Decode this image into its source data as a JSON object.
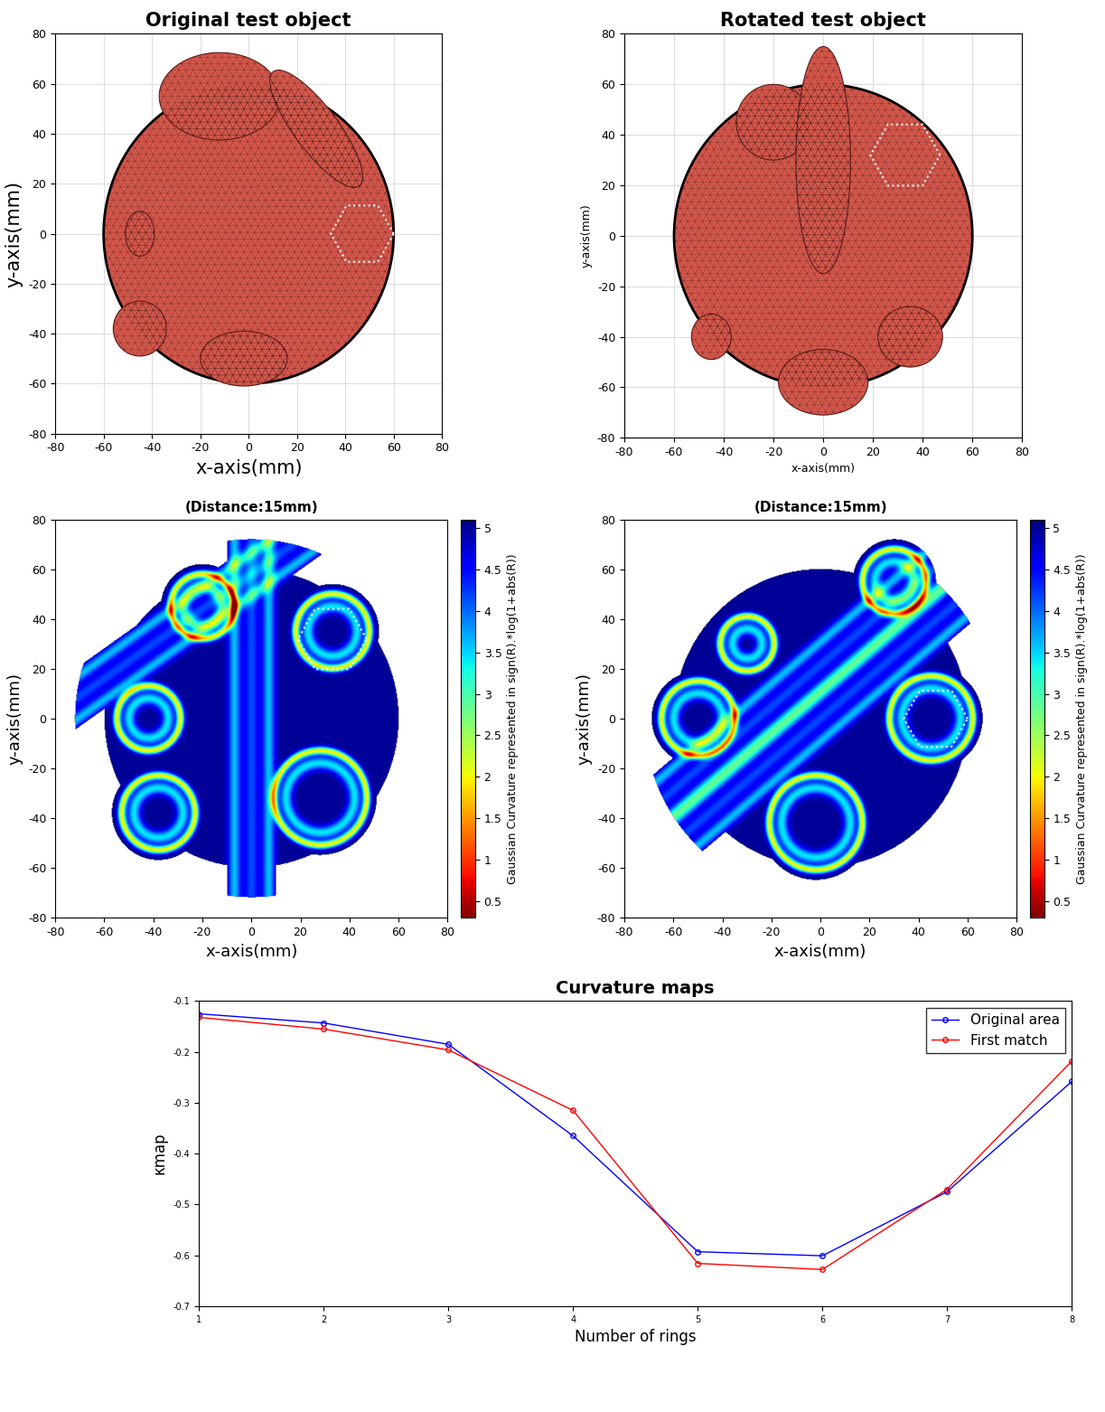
{
  "chart_data": [
    {
      "type": "mesh",
      "title": "Original test object",
      "x_label": "x-axis(mm)",
      "y_label": "y-axis(mm)",
      "xlim": [
        -80,
        80
      ],
      "ylim": [
        -80,
        80
      ],
      "xticks": [
        -80,
        -60,
        -40,
        -20,
        0,
        20,
        40,
        60,
        80
      ],
      "yticks": [
        -80,
        -60,
        -40,
        -20,
        0,
        20,
        40,
        60,
        80
      ],
      "grid": true
    },
    {
      "type": "mesh",
      "title": "Rotated test object",
      "x_label": "x-axis(mm)",
      "y_label": "y-axis(mm)",
      "xlim": [
        -80,
        80
      ],
      "ylim": [
        -80,
        80
      ],
      "xticks": [
        -80,
        -60,
        -40,
        -20,
        0,
        20,
        40,
        60,
        80
      ],
      "yticks": [
        -80,
        -60,
        -40,
        -20,
        0,
        20,
        40,
        60,
        80
      ],
      "grid": true
    },
    {
      "type": "heatmap",
      "title": "(Distance:15mm)",
      "x_label": "x-axis(mm)",
      "y_label": "y-axis(mm)",
      "xlim": [
        -80,
        80
      ],
      "ylim": [
        -80,
        80
      ],
      "xticks": [
        -80,
        -60,
        -40,
        -20,
        0,
        20,
        40,
        60,
        80
      ],
      "yticks": [
        -80,
        -60,
        -40,
        -20,
        0,
        20,
        40,
        60,
        80
      ],
      "colorbar_label": "Gaussian Curvature represented in sign(R).*log(1+abs(R))",
      "colorbar_range": [
        0.3,
        5.1
      ],
      "colorbar_ticks": [
        0.5,
        1,
        1.5,
        2,
        2.5,
        3,
        3.5,
        4,
        4.5,
        5
      ]
    },
    {
      "type": "heatmap",
      "title": "(Distance:15mm)",
      "x_label": "x-axis(mm)",
      "y_label": "y-axis(mm)",
      "xlim": [
        -80,
        80
      ],
      "ylim": [
        -80,
        80
      ],
      "xticks": [
        -80,
        -60,
        -40,
        -20,
        0,
        20,
        40,
        60,
        80
      ],
      "yticks": [
        -80,
        -60,
        -40,
        -20,
        0,
        20,
        40,
        60,
        80
      ],
      "colorbar_label": "Gaussian Curvature represented in sign(R).*log(1+abs(R))",
      "colorbar_range": [
        0.3,
        5.1
      ],
      "colorbar_ticks": [
        0.5,
        1,
        1.5,
        2,
        2.5,
        3,
        3.5,
        4,
        4.5,
        5
      ]
    },
    {
      "type": "line",
      "title": "Curvature maps",
      "x_label": "Number of rings",
      "y_label": "κmap",
      "x": [
        1,
        2,
        3,
        4,
        5,
        6,
        7,
        8
      ],
      "xlim": [
        1,
        8
      ],
      "xticks": [
        1,
        2,
        3,
        4,
        5,
        6,
        7,
        8
      ],
      "ylim": [
        -0.7,
        -0.1
      ],
      "yticks": [
        -0.7,
        -0.6,
        -0.5,
        -0.4,
        -0.3,
        -0.2,
        -0.1
      ],
      "legend": "upper right",
      "series": [
        {
          "name": "Original area",
          "color": "#0000ff",
          "marker": "o",
          "line_style": "solid",
          "values": [
            -0.125,
            -0.143,
            -0.185,
            -0.365,
            -0.593,
            -0.601,
            -0.475,
            -0.258
          ]
        },
        {
          "name": "First match",
          "color": "#ff0000",
          "marker": "o",
          "line_style": "solid",
          "values": [
            -0.132,
            -0.155,
            -0.196,
            -0.315,
            -0.616,
            -0.628,
            -0.47,
            -0.218
          ]
        }
      ]
    }
  ]
}
